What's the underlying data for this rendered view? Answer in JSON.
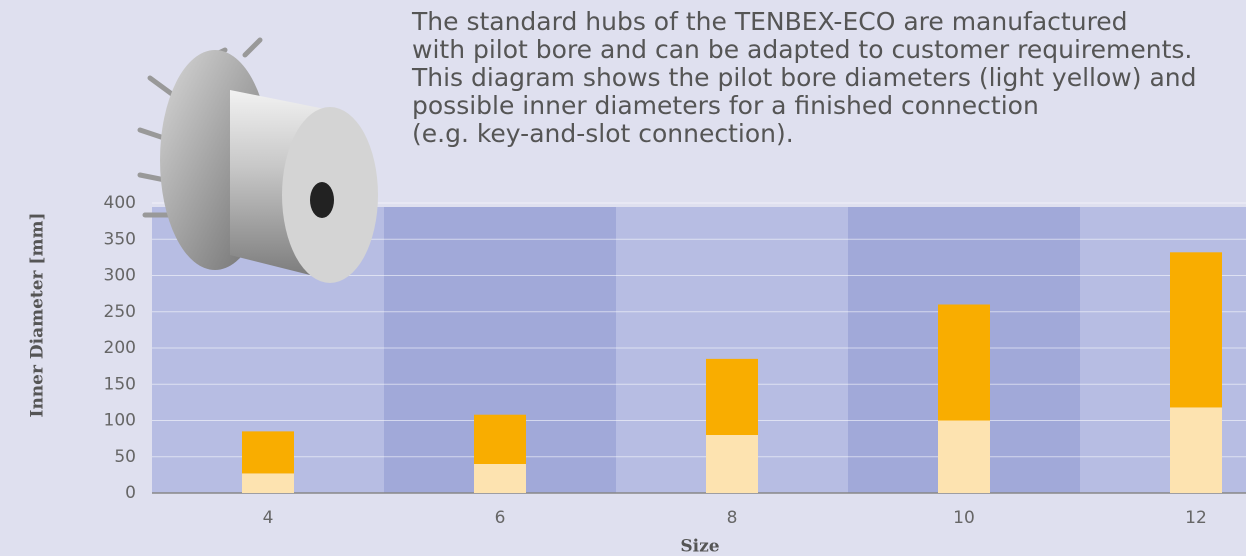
{
  "chart_data": {
    "type": "stacked_bar",
    "description": [
      "The standard hubs of the TENBEX-ECO are manufactured",
      "with pilot bore and can be adapted to customer requirements.",
      "This diagram shows the pilot bore diameters (light yellow) and",
      "possible inner diameters for a finished connection",
      "(e.g. key-and-slot connection)."
    ],
    "x_label": "Size",
    "y_label": "Inner Diameter [mm]",
    "categories": [
      "4",
      "6",
      "8",
      "10",
      "12"
    ],
    "series": [
      {
        "color": "#fde3b0",
        "values": [
          27,
          40,
          80,
          100,
          118
        ]
      },
      {
        "color": "#f9ad00",
        "values": [
          58,
          68,
          105,
          160,
          214
        ]
      }
    ],
    "ylim": [
      0,
      400
    ],
    "yticks": [
      0,
      50,
      100,
      150,
      200,
      250,
      300,
      350,
      400
    ],
    "grid": true,
    "band_colors": [
      "#b7bde3",
      "#a1a9d9"
    ]
  }
}
